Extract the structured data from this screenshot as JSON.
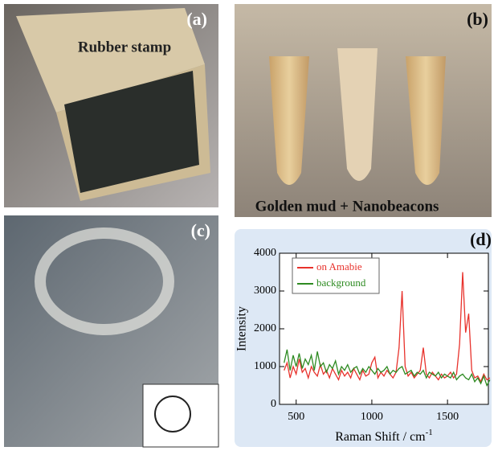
{
  "panels": {
    "a": {
      "label": "(a)",
      "caption": "Rubber stamp"
    },
    "b": {
      "label": "(b)",
      "caption": "Golden mud + Nanobeacons"
    },
    "c": {
      "label": "(c)"
    }
  },
  "chart_data": {
    "type": "line",
    "panel_label": "(d)",
    "x_label": {
      "text": "Raman Shift / cm",
      "sup": "-1"
    },
    "y_label": "Intensity",
    "x": [
      420,
      440,
      460,
      480,
      500,
      520,
      540,
      560,
      580,
      600,
      620,
      640,
      660,
      680,
      700,
      720,
      740,
      760,
      780,
      800,
      820,
      840,
      860,
      880,
      900,
      920,
      940,
      960,
      980,
      1000,
      1020,
      1040,
      1060,
      1080,
      1100,
      1120,
      1140,
      1160,
      1180,
      1200,
      1220,
      1240,
      1260,
      1280,
      1300,
      1320,
      1340,
      1360,
      1380,
      1400,
      1420,
      1440,
      1460,
      1480,
      1500,
      1520,
      1540,
      1560,
      1580,
      1600,
      1620,
      1640,
      1660,
      1680,
      1700,
      1720,
      1740,
      1760,
      1780
    ],
    "series": [
      {
        "name": "on Amabie",
        "color": "#e8322c",
        "values": [
          900,
          1100,
          700,
          1000,
          800,
          1200,
          850,
          950,
          700,
          1000,
          850,
          750,
          1050,
          800,
          900,
          700,
          950,
          800,
          650,
          900,
          750,
          850,
          700,
          950,
          800,
          650,
          900,
          750,
          800,
          1100,
          1250,
          700,
          850,
          750,
          900,
          800,
          700,
          850,
          1500,
          3000,
          1000,
          750,
          850,
          700,
          800,
          900,
          1500,
          800,
          700,
          850,
          750,
          650,
          800,
          700,
          750,
          850,
          700,
          800,
          1600,
          3500,
          1900,
          2400,
          900,
          700,
          750,
          600,
          800,
          650,
          700
        ]
      },
      {
        "name": "background",
        "color": "#2e8b22",
        "values": [
          1100,
          1450,
          900,
          1300,
          1000,
          1350,
          950,
          1200,
          1050,
          1300,
          900,
          1400,
          1000,
          1100,
          850,
          1050,
          950,
          1150,
          800,
          1000,
          900,
          1050,
          850,
          950,
          1000,
          800,
          950,
          850,
          1000,
          900,
          800,
          950,
          850,
          900,
          1000,
          800,
          900,
          850,
          950,
          1000,
          800,
          850,
          900,
          750,
          850,
          800,
          900,
          700,
          850,
          800,
          750,
          850,
          700,
          800,
          750,
          700,
          850,
          650,
          750,
          800,
          700,
          650,
          800,
          600,
          700,
          550,
          750,
          500,
          650
        ]
      }
    ],
    "xlim": [
      390,
      1770
    ],
    "ylim": [
      0,
      4000
    ],
    "xticks": [
      500,
      1000,
      1500
    ],
    "yticks": [
      0,
      1000,
      2000,
      3000,
      4000
    ],
    "legend": "upper-left"
  }
}
